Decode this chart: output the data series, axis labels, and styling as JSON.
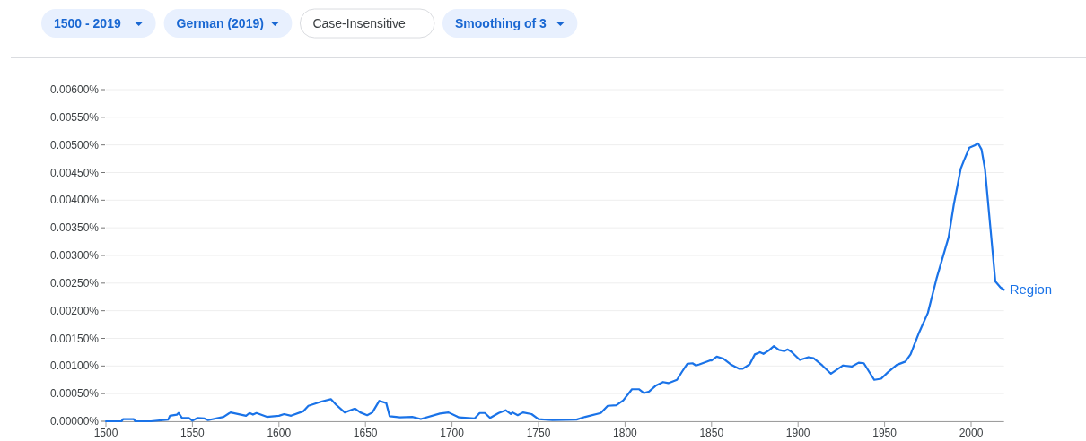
{
  "chart_data": {
    "type": "line",
    "annotations": [
      "1500 - 2019",
      "German (2019)",
      "Case-Insensitive",
      "Smoothing of 3"
    ],
    "xlim": [
      1500,
      2019
    ],
    "xticks": [
      1500,
      1550,
      1600,
      1650,
      1700,
      1750,
      1800,
      1850,
      1900,
      1950,
      2000
    ],
    "ylim": [
      0,
      0.006
    ],
    "yticks": [
      {
        "value": 0,
        "label": "0.00000%"
      },
      {
        "value": 0.0005,
        "label": "0.00050%"
      },
      {
        "value": 0.001,
        "label": "0.00100%"
      },
      {
        "value": 0.0015,
        "label": "0.00150%"
      },
      {
        "value": 0.002,
        "label": "0.00200%"
      },
      {
        "value": 0.0025,
        "label": "0.00250%"
      },
      {
        "value": 0.003,
        "label": "0.00300%"
      },
      {
        "value": 0.0035,
        "label": "0.00350%"
      },
      {
        "value": 0.004,
        "label": "0.00400%"
      },
      {
        "value": 0.0045,
        "label": "0.00450%"
      },
      {
        "value": 0.005,
        "label": "0.00500%"
      },
      {
        "value": 0.0055,
        "label": "0.00550%"
      },
      {
        "value": 0.006,
        "label": "0.00600%"
      }
    ],
    "grid": "y",
    "legend": false,
    "marker": "none",
    "line_style": "solid",
    "series": [
      {
        "name": "Region",
        "color": "#1a73e8",
        "x": [
          1500,
          1509,
          1510,
          1516,
          1517,
          1526,
          1536,
          1537,
          1541,
          1542,
          1544,
          1548,
          1550,
          1553,
          1557,
          1559,
          1568,
          1572,
          1581,
          1583,
          1585,
          1587,
          1593,
          1600,
          1603,
          1607,
          1614,
          1617,
          1621,
          1625,
          1630,
          1633,
          1638,
          1644,
          1647,
          1651,
          1654,
          1658,
          1662,
          1664,
          1670,
          1677,
          1682,
          1693,
          1698,
          1704,
          1713,
          1716,
          1719,
          1722,
          1727,
          1731,
          1734,
          1735,
          1738,
          1741,
          1746,
          1750,
          1758,
          1772,
          1777,
          1786,
          1790,
          1795,
          1799,
          1804,
          1808,
          1811,
          1814,
          1818,
          1822,
          1825,
          1830,
          1833,
          1836,
          1839,
          1841,
          1843,
          1849,
          1850,
          1853,
          1857,
          1861,
          1866,
          1868,
          1872,
          1875,
          1878,
          1880,
          1883,
          1886,
          1889,
          1892,
          1894,
          1896,
          1901,
          1906,
          1909,
          1914,
          1919,
          1926,
          1931,
          1935,
          1938,
          1944,
          1948,
          1952,
          1957,
          1962,
          1965,
          1970,
          1975,
          1980,
          1987,
          1990,
          1994,
          1996,
          1999,
          2002,
          2004,
          2006,
          2008,
          2011,
          2014,
          2017,
          2019
        ],
        "values": [
          0,
          0,
          4e-05,
          4e-05,
          0,
          0,
          3e-05,
          0.0001,
          0.00012,
          0.00015,
          6e-05,
          6e-05,
          1e-05,
          6e-05,
          5e-05,
          2e-05,
          8e-05,
          0.00016,
          0.0001,
          0.00015,
          0.00012,
          0.00015,
          8e-05,
          0.0001,
          0.00013,
          0.0001,
          0.00018,
          0.00028,
          0.00032,
          0.00036,
          0.0004,
          0.0003,
          0.00016,
          0.00023,
          0.00016,
          0.00011,
          0.00016,
          0.00037,
          0.00033,
          9e-05,
          7e-05,
          8e-05,
          4e-05,
          0.00014,
          0.00016,
          7e-05,
          5e-05,
          0.00015,
          0.00015,
          6e-05,
          0.00015,
          0.0002,
          0.00013,
          0.00016,
          0.00011,
          0.00016,
          0.00013,
          4e-05,
          2e-05,
          3e-05,
          8e-05,
          0.00015,
          0.00028,
          0.00029,
          0.00038,
          0.00058,
          0.00058,
          0.00051,
          0.00054,
          0.00065,
          0.00071,
          0.00069,
          0.00075,
          0.0009,
          0.00104,
          0.00105,
          0.00101,
          0.00103,
          0.0011,
          0.0011,
          0.00117,
          0.00113,
          0.00103,
          0.00095,
          0.00095,
          0.00103,
          0.00121,
          0.00125,
          0.00122,
          0.00128,
          0.00136,
          0.00129,
          0.00127,
          0.0013,
          0.00126,
          0.00111,
          0.00116,
          0.00114,
          0.00101,
          0.00086,
          0.00101,
          0.00099,
          0.00106,
          0.00105,
          0.00075,
          0.00077,
          0.00089,
          0.00102,
          0.00108,
          0.00121,
          0.00161,
          0.00196,
          0.00258,
          0.00333,
          0.00392,
          0.00457,
          0.00473,
          0.00495,
          0.00499,
          0.00503,
          0.00492,
          0.00457,
          0.00355,
          0.00253,
          0.00242,
          0.00238
        ]
      }
    ]
  }
}
